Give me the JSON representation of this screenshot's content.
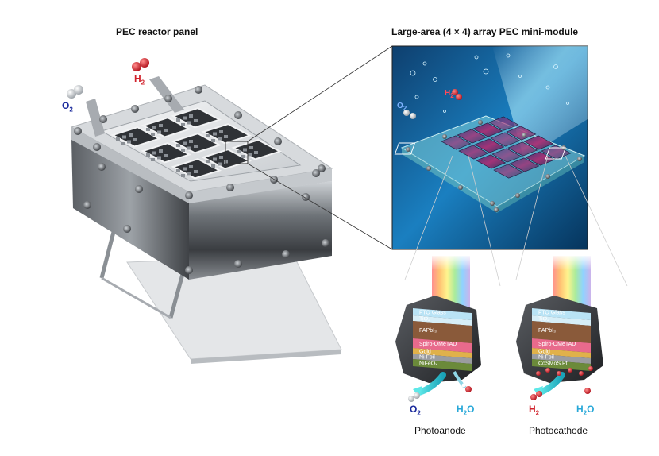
{
  "titles": {
    "left": "PEC reactor panel",
    "right": "Large-area (4 × 4) array PEC mini-module"
  },
  "gases": {
    "o2": {
      "base": "O",
      "sub": "2",
      "color": "#1a2a9c"
    },
    "h2": {
      "base": "H",
      "sub": "2",
      "color": "#d0202a"
    },
    "h2o": {
      "base": "H",
      "sub": "2",
      "tail": "O",
      "color": "#28a8d8"
    }
  },
  "anode": {
    "label": "Photoanode",
    "layers": [
      "FTO Glass",
      "TiO₂",
      "FAPbI₃",
      "Spiro-OMeTAD",
      "Gold",
      "Ni Foil",
      "NiFeOₓ"
    ]
  },
  "cathode": {
    "label": "Photocathode",
    "layers": [
      "FTO Glass",
      "TiO₂",
      "FAPbI₃",
      "Spiro-OMeTAD",
      "Gold",
      "Ni Foil",
      "CoSMoS.Pt"
    ]
  },
  "colors": {
    "frame": "#8c9197",
    "steel": "#4a4e53",
    "water": "#1a6aa8",
    "rainbow": [
      "#ff6b6b",
      "#ffb347",
      "#fff176",
      "#8ee07a",
      "#6ec6ff",
      "#b39ddb"
    ]
  }
}
